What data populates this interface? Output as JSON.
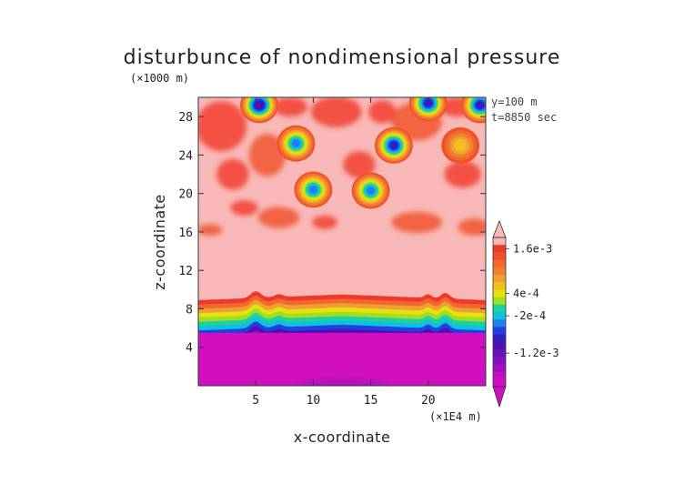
{
  "chart_data": {
    "type": "heatmap",
    "title": "disturbunce of nondimensional pressure",
    "xlabel": "x-coordinate",
    "ylabel": "z-coordinate",
    "x_unit": "(×1E4 m)",
    "y_unit": "(×1000 m)",
    "xlim": [
      0,
      25
    ],
    "ylim": [
      0,
      30
    ],
    "xticks": [
      5,
      10,
      15,
      20
    ],
    "yticks": [
      4,
      8,
      12,
      16,
      20,
      24,
      28
    ],
    "annotations": [
      "y=100 m",
      "t=8850 sec"
    ],
    "colorbar": {
      "labels": [
        {
          "text": "1.6e-3",
          "value": 0.0016
        },
        {
          "text": "4e-4",
          "value": 0.0004
        },
        {
          "text": "-2e-4",
          "value": -0.0002
        },
        {
          "text": "-1.2e-3",
          "value": -0.0012
        }
      ],
      "levels": [
        0.0022,
        0.0018,
        0.0016,
        0.0014,
        0.0012,
        0.001,
        0.0008,
        0.0006,
        0.0004,
        0.0002,
        0,
        -0.0002,
        -0.0004,
        -0.0006,
        -0.0008,
        -0.001,
        -0.0012,
        -0.0014,
        -0.0016,
        -0.0018,
        -0.002
      ],
      "colors": [
        "#f8b8b8",
        "#f8b8b8",
        "#f03828",
        "#f05028",
        "#f06830",
        "#f08030",
        "#f0a030",
        "#f0c020",
        "#e8e010",
        "#a0e020",
        "#20d0a0",
        "#10c0e0",
        "#2080f0",
        "#2040e0",
        "#3020c0",
        "#5010b0",
        "#6a10b8",
        "#8010c0",
        "#a010c0",
        "#c010c0",
        "#d010c0"
      ],
      "extend": "both"
    },
    "features": {
      "background_level": 0.0022,
      "anomalies": [
        {
          "x": 8.5,
          "z": 25.2,
          "peak": -0.0004
        },
        {
          "x": 10.0,
          "z": 20.4,
          "peak": -0.0004
        },
        {
          "x": 15.0,
          "z": 20.3,
          "peak": -0.0005
        },
        {
          "x": 17.0,
          "z": 25.0,
          "peak": -0.0009
        },
        {
          "x": 5.3,
          "z": 29.2,
          "peak": -0.001
        },
        {
          "x": 20.0,
          "z": 29.4,
          "peak": -0.0008
        },
        {
          "x": 24.5,
          "z": 29.2,
          "peak": -0.0008
        },
        {
          "x": 22.8,
          "z": 25.0,
          "peak": 0.0006
        }
      ],
      "lower_layer": {
        "top_z": 9.5,
        "level": -0.002
      }
    }
  }
}
